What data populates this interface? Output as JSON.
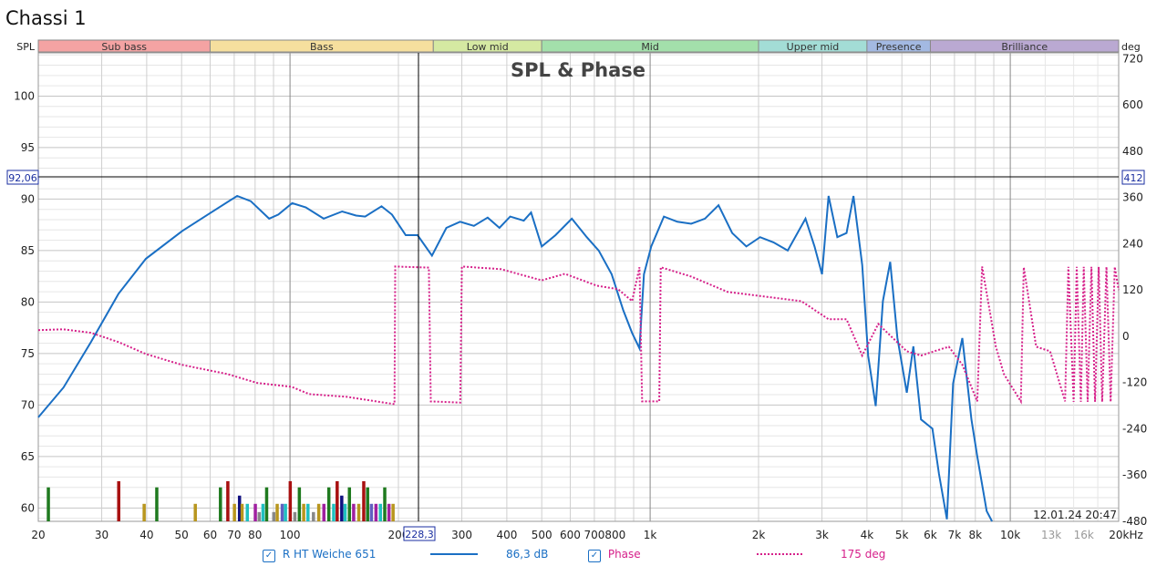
{
  "window_title": "Chassi 1",
  "legend": {
    "spl_name": "R HT Weiche 651",
    "spl_value": "86,3 dB",
    "spl_checked": true,
    "phase_name": "Phase",
    "phase_value": "175 deg",
    "phase_checked": true
  },
  "cursor": {
    "freq_label": "228,3",
    "spl_label": "92,06",
    "phase_label": "412"
  },
  "timestamp": "12.01.24 20:47",
  "colors": {
    "spl": "#1a6fc4",
    "phase": "#d6208a"
  },
  "chart_data": {
    "type": "line",
    "title": "SPL & Phase",
    "xlabel": "Hz",
    "ylabel": "SPL",
    "y2label": "deg",
    "xscale": "log",
    "xlim": [
      20,
      20000
    ],
    "ylim": [
      58.7,
      104.2
    ],
    "y2lim": [
      -480,
      735
    ],
    "x_ticks": [
      "20",
      "30",
      "40",
      "50",
      "60",
      "70",
      "80",
      "100",
      "200",
      "300",
      "400",
      "500",
      "600",
      "700",
      "800",
      "1k",
      "2k",
      "3k",
      "4k",
      "5k",
      "6k",
      "7k",
      "8k",
      "10k",
      "13k",
      "16k",
      "20kHz"
    ],
    "x_tick_values": [
      20,
      30,
      40,
      50,
      60,
      70,
      80,
      100,
      200,
      300,
      400,
      500,
      600,
      700,
      800,
      1000,
      2000,
      3000,
      4000,
      5000,
      6000,
      7000,
      8000,
      10000,
      13000,
      16000,
      20000
    ],
    "y_ticks": [
      60,
      65,
      70,
      75,
      80,
      85,
      90,
      95,
      100
    ],
    "y2_ticks": [
      720,
      600,
      480,
      360,
      240,
      120,
      0,
      -120,
      -240,
      -360,
      -480
    ],
    "bands": [
      {
        "name": "Sub bass",
        "from": 20,
        "to": 60,
        "color": "#f4a3a3"
      },
      {
        "name": "Bass",
        "from": 60,
        "to": 250,
        "color": "#f6df9e"
      },
      {
        "name": "Low mid",
        "from": 250,
        "to": 500,
        "color": "#d5e9a2"
      },
      {
        "name": "Mid",
        "from": 500,
        "to": 2000,
        "color": "#a3e0ab"
      },
      {
        "name": "Upper mid",
        "from": 2000,
        "to": 4000,
        "color": "#a3ddd6"
      },
      {
        "name": "Presence",
        "from": 4000,
        "to": 6000,
        "color": "#a3b9e2"
      },
      {
        "name": "Brilliance",
        "from": 6000,
        "to": 20000,
        "color": "#baa9d2"
      }
    ],
    "series": [
      {
        "name": "R HT Weiche 651",
        "axis": "left",
        "style": "solid",
        "x": [
          20,
          23.5,
          28,
          33.4,
          39.8,
          50.2,
          59.8,
          71.3,
          77.8,
          87.5,
          92.8,
          101.4,
          110.6,
          124,
          139.6,
          152.5,
          161.7,
          179.6,
          191.9,
          209.5,
          226,
          247.8,
          271.7,
          296.6,
          324,
          354,
          381.6,
          408.6,
          445.9,
          467,
          500,
          546,
          606,
          667,
          720,
          782,
          842,
          891,
          934,
          961,
          1007,
          1092,
          1190,
          1300,
          1420,
          1548,
          1690,
          1850,
          2020,
          2200,
          2410,
          2700,
          2860,
          3000,
          3130,
          3310,
          3510,
          3670,
          3880,
          4030,
          4230,
          4430,
          4640,
          4860,
          5160,
          5380,
          5650,
          6080,
          6340,
          6670,
          6940,
          7360,
          7800,
          8100,
          8600,
          8900
        ],
        "y": [
          68.8,
          71.7,
          76.1,
          80.8,
          84.2,
          86.9,
          88.6,
          90.3,
          89.8,
          88.1,
          88.5,
          89.6,
          89.2,
          88.1,
          88.8,
          88.4,
          88.3,
          89.3,
          88.5,
          86.5,
          86.5,
          84.5,
          87.2,
          87.8,
          87.4,
          88.2,
          87.2,
          88.3,
          87.9,
          88.7,
          85.4,
          86.5,
          88.1,
          86.3,
          85.0,
          82.7,
          79.2,
          77.0,
          75.5,
          82.7,
          85.4,
          88.3,
          87.8,
          87.6,
          88.1,
          89.4,
          86.7,
          85.4,
          86.3,
          85.8,
          85.0,
          88.1,
          85.4,
          82.7,
          90.3,
          86.3,
          86.7,
          90.3,
          83.6,
          74.8,
          69.9,
          80.1,
          83.9,
          76.5,
          71.2,
          75.7,
          68.6,
          67.7,
          63.3,
          58.9,
          72.1,
          76.5,
          68.6,
          65.0,
          59.7,
          58.7
        ]
      },
      {
        "name": "Phase",
        "axis": "right",
        "style": "dotted",
        "x": [
          20,
          23.5,
          28,
          33.4,
          39.8,
          50,
          67,
          81,
          101,
          113,
          144,
          185,
          195,
          196,
          243,
          246,
          297,
          300,
          385,
          500,
          580,
          712,
          815,
          891,
          934,
          950,
          1060,
          1070,
          1300,
          1640,
          2080,
          2630,
          3130,
          3510,
          3880,
          4300,
          4700,
          5160,
          5650,
          6150,
          6750,
          7360,
          8100,
          8350,
          9120,
          9600,
          10700,
          10900,
          11800,
          12900,
          14200,
          14500,
          15000,
          15300,
          15700,
          16000,
          16400,
          16800,
          17200,
          17600,
          18000,
          18500,
          19000,
          19500,
          20000
        ],
        "y": [
          16,
          18,
          9,
          -15,
          -46,
          -74,
          -98,
          -121,
          -131,
          -150,
          -157,
          -173,
          -176,
          181,
          178,
          -169,
          -172,
          181,
          174,
          145,
          162,
          131,
          122,
          91,
          179,
          -169,
          -169,
          179,
          155,
          115,
          103,
          91,
          44,
          44,
          -50,
          32,
          -3,
          -39,
          -50,
          -39,
          -27,
          -74,
          -169,
          181,
          -27,
          -98,
          -169,
          179,
          -27,
          -39,
          -169,
          180,
          -170,
          180,
          -170,
          180,
          -170,
          180,
          -170,
          180,
          -170,
          180,
          -170,
          180,
          120
        ]
      }
    ],
    "modal_bars": [
      {
        "f": 21.3,
        "level": 62,
        "color": "#1f7a1f"
      },
      {
        "f": 33.4,
        "level": 62.6,
        "color": "#a81010"
      },
      {
        "f": 39.3,
        "level": 60.4,
        "color": "#b8961e"
      },
      {
        "f": 42.6,
        "level": 62,
        "color": "#1f7a1f"
      },
      {
        "f": 54.5,
        "level": 60.4,
        "color": "#b8961e"
      },
      {
        "f": 64,
        "level": 62,
        "color": "#1f7a1f"
      },
      {
        "f": 67.1,
        "level": 62.6,
        "color": "#a81010"
      },
      {
        "f": 70,
        "level": 60.4,
        "color": "#b8961e"
      },
      {
        "f": 72.3,
        "level": 61.2,
        "color": "#101080"
      },
      {
        "f": 73.5,
        "level": 60.4,
        "color": "#b8961e"
      },
      {
        "f": 76,
        "level": 60.4,
        "color": "#20c0c0"
      },
      {
        "f": 80,
        "level": 60.4,
        "color": "#a020a0"
      },
      {
        "f": 82,
        "level": 59.6,
        "color": "#888888"
      },
      {
        "f": 84,
        "level": 60.4,
        "color": "#20c0c0"
      },
      {
        "f": 86,
        "level": 62,
        "color": "#1f7a1f"
      },
      {
        "f": 90,
        "level": 59.6,
        "color": "#888888"
      },
      {
        "f": 92,
        "level": 60.4,
        "color": "#b8961e"
      },
      {
        "f": 95,
        "level": 60.4,
        "color": "#6060c0"
      },
      {
        "f": 97,
        "level": 60.4,
        "color": "#20c0c0"
      },
      {
        "f": 100,
        "level": 62.6,
        "color": "#a81010"
      },
      {
        "f": 103,
        "level": 59.6,
        "color": "#888888"
      },
      {
        "f": 106,
        "level": 62,
        "color": "#1f7a1f"
      },
      {
        "f": 109,
        "level": 60.4,
        "color": "#b8961e"
      },
      {
        "f": 112,
        "level": 60.4,
        "color": "#20c0c0"
      },
      {
        "f": 116,
        "level": 59.6,
        "color": "#888888"
      },
      {
        "f": 120,
        "level": 60.4,
        "color": "#b8961e"
      },
      {
        "f": 124,
        "level": 60.4,
        "color": "#a020a0"
      },
      {
        "f": 128,
        "level": 62,
        "color": "#1f7a1f"
      },
      {
        "f": 132,
        "level": 60.4,
        "color": "#20c0c0"
      },
      {
        "f": 135,
        "level": 62.6,
        "color": "#a81010"
      },
      {
        "f": 139,
        "level": 61.2,
        "color": "#101080"
      },
      {
        "f": 142,
        "level": 60.4,
        "color": "#20c0c0"
      },
      {
        "f": 146,
        "level": 62,
        "color": "#1f7a1f"
      },
      {
        "f": 150,
        "level": 60.4,
        "color": "#a020a0"
      },
      {
        "f": 155,
        "level": 60.4,
        "color": "#b8961e"
      },
      {
        "f": 160,
        "level": 62.6,
        "color": "#a81010"
      },
      {
        "f": 164,
        "level": 62,
        "color": "#1f7a1f"
      },
      {
        "f": 168,
        "level": 60.4,
        "color": "#6060c0"
      },
      {
        "f": 173,
        "level": 60.4,
        "color": "#a020a0"
      },
      {
        "f": 178,
        "level": 60.4,
        "color": "#20c0c0"
      },
      {
        "f": 183,
        "level": 62,
        "color": "#1f7a1f"
      },
      {
        "f": 188,
        "level": 60.4,
        "color": "#a020a0"
      },
      {
        "f": 193,
        "level": 60.4,
        "color": "#b8961e"
      }
    ]
  }
}
